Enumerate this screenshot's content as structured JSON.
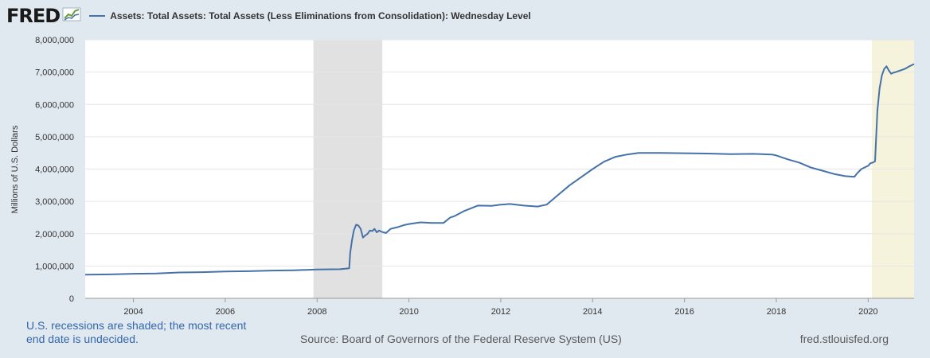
{
  "header": {
    "logo_text": "FRED",
    "logo_icon": "chart-trend-icon"
  },
  "colors": {
    "line": "#4572a7",
    "recession_shade": "#e1e1e1",
    "highlight_shade": "#f5f3dc",
    "grid": "#e6e6e6",
    "plot_background": "#ffffff"
  },
  "footer": {
    "note": "U.S. recessions are shaded; the most recent end date is undecided.",
    "source": "Source: Board of Governors of the Federal Reserve System (US)",
    "site": "fred.stlouisfed.org"
  },
  "chart_data": {
    "type": "line",
    "title": "",
    "xlabel": "",
    "ylabel": "Millions of U.S. Dollars",
    "xlim": [
      2002.95,
      2021.0
    ],
    "ylim": [
      0,
      8000000
    ],
    "y_ticks": [
      {
        "value": 0,
        "label": "0"
      },
      {
        "value": 1000000,
        "label": "1,000,000"
      },
      {
        "value": 2000000,
        "label": "2,000,000"
      },
      {
        "value": 3000000,
        "label": "3,000,000"
      },
      {
        "value": 4000000,
        "label": "4,000,000"
      },
      {
        "value": 5000000,
        "label": "5,000,000"
      },
      {
        "value": 6000000,
        "label": "6,000,000"
      },
      {
        "value": 7000000,
        "label": "7,000,000"
      },
      {
        "value": 8000000,
        "label": "8,000,000"
      }
    ],
    "x_ticks": [
      {
        "value": 2004,
        "label": "2004"
      },
      {
        "value": 2006,
        "label": "2006"
      },
      {
        "value": 2008,
        "label": "2008"
      },
      {
        "value": 2010,
        "label": "2010"
      },
      {
        "value": 2012,
        "label": "2012"
      },
      {
        "value": 2014,
        "label": "2014"
      },
      {
        "value": 2016,
        "label": "2016"
      },
      {
        "value": 2018,
        "label": "2018"
      },
      {
        "value": 2020,
        "label": "2020"
      }
    ],
    "grid": true,
    "legend_position": "top-left",
    "shaded_regions": [
      {
        "start": 2007.92,
        "end": 2009.42,
        "kind": "recession"
      },
      {
        "start": 2020.08,
        "end": 2021.0,
        "kind": "recession-undecided"
      }
    ],
    "series": [
      {
        "name": "Assets: Total Assets: Total Assets (Less Eliminations from Consolidation): Wednesday Level",
        "x": [
          2002.95,
          2003.5,
          2004,
          2004.5,
          2005,
          2005.5,
          2006,
          2006.5,
          2007,
          2007.5,
          2008.0,
          2008.5,
          2008.7,
          2008.72,
          2008.76,
          2008.8,
          2008.85,
          2008.9,
          2008.95,
          2009.0,
          2009.05,
          2009.1,
          2009.15,
          2009.2,
          2009.25,
          2009.3,
          2009.35,
          2009.4,
          2009.5,
          2009.6,
          2009.75,
          2009.9,
          2010.0,
          2010.25,
          2010.5,
          2010.75,
          2010.9,
          2011.0,
          2011.2,
          2011.5,
          2011.8,
          2012.0,
          2012.2,
          2012.5,
          2012.8,
          2013.0,
          2013.25,
          2013.5,
          2013.75,
          2014.0,
          2014.25,
          2014.5,
          2014.75,
          2015.0,
          2015.5,
          2016.0,
          2016.5,
          2017.0,
          2017.5,
          2017.9,
          2018.0,
          2018.25,
          2018.5,
          2018.75,
          2019.0,
          2019.25,
          2019.5,
          2019.7,
          2019.75,
          2019.85,
          2020.0,
          2020.05,
          2020.1,
          2020.15,
          2020.2,
          2020.25,
          2020.3,
          2020.35,
          2020.4,
          2020.45,
          2020.5,
          2020.55,
          2020.6,
          2020.7,
          2020.8,
          2020.9,
          2021.0
        ],
        "values": [
          730000,
          740000,
          760000,
          770000,
          800000,
          810000,
          830000,
          840000,
          860000,
          870000,
          890000,
          900000,
          930000,
          1400000,
          1800000,
          2100000,
          2280000,
          2250000,
          2150000,
          1880000,
          1950000,
          2000000,
          2100000,
          2080000,
          2150000,
          2040000,
          2100000,
          2060000,
          2020000,
          2150000,
          2200000,
          2270000,
          2300000,
          2350000,
          2330000,
          2330000,
          2500000,
          2550000,
          2700000,
          2870000,
          2860000,
          2900000,
          2920000,
          2870000,
          2840000,
          2900000,
          3200000,
          3500000,
          3750000,
          4000000,
          4230000,
          4380000,
          4450000,
          4500000,
          4500000,
          4490000,
          4480000,
          4460000,
          4470000,
          4450000,
          4420000,
          4300000,
          4200000,
          4050000,
          3950000,
          3850000,
          3780000,
          3760000,
          3850000,
          4000000,
          4100000,
          4180000,
          4200000,
          4240000,
          5800000,
          6500000,
          6900000,
          7100000,
          7180000,
          7050000,
          6950000,
          6980000,
          7000000,
          7050000,
          7100000,
          7180000,
          7250000
        ]
      }
    ]
  }
}
